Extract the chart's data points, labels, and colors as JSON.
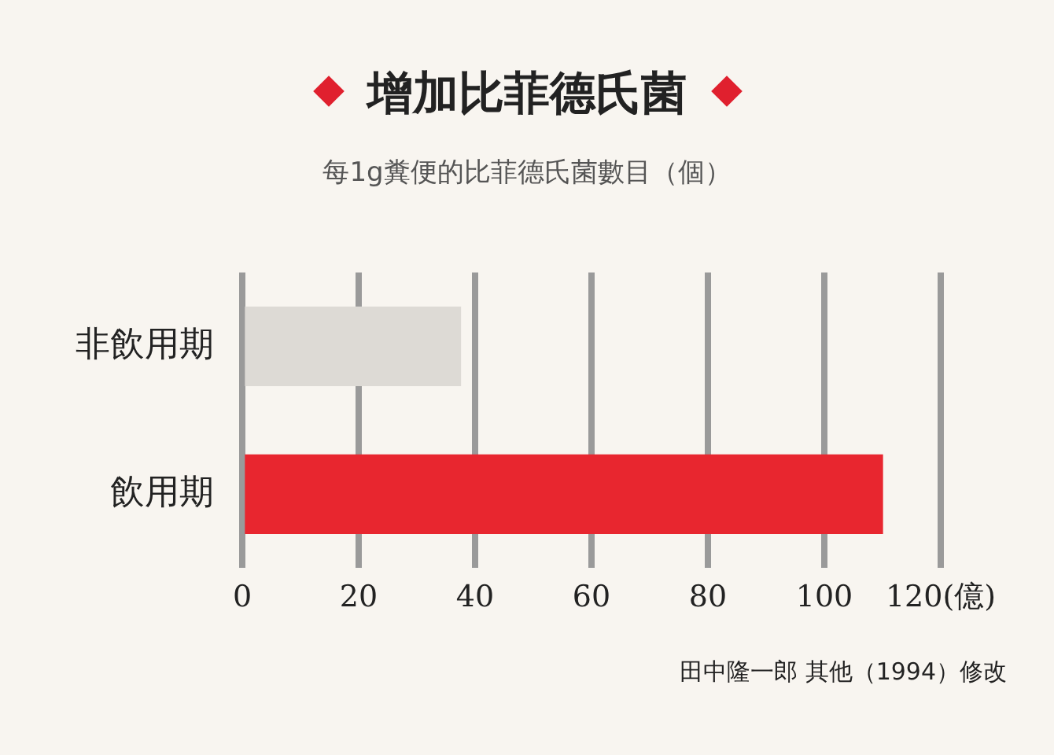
{
  "chart_data": {
    "type": "bar",
    "orientation": "horizontal",
    "title": "增加比菲德氏菌",
    "subtitle": "每1g糞便的比菲德氏菌數目（個）",
    "categories": [
      "非飲用期",
      "飲用期"
    ],
    "values": [
      37.5,
      110
    ],
    "colors": [
      "#dddad5",
      "#e8262f"
    ],
    "xlim": [
      0,
      120
    ],
    "xticks": [
      0,
      20,
      40,
      60,
      80,
      100,
      {
        "value": 120,
        "label": "120(億)"
      }
    ],
    "grid": "x",
    "legend": false,
    "annotations": [
      "田中隆一郎 其他（1994）修改"
    ]
  }
}
